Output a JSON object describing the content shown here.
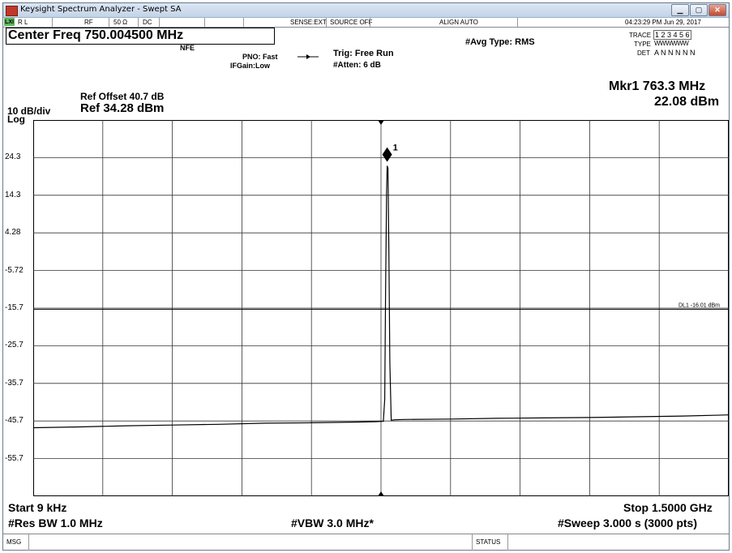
{
  "window": {
    "title": "Keysight Spectrum Analyzer - Swept SA",
    "minimize": "▁",
    "maximize": "▢",
    "close": "✕"
  },
  "status_bar": {
    "lxi": "LXI",
    "rl": "R L",
    "rf": "RF",
    "impedance": "50 Ω",
    "coupling": "DC",
    "sense": "SENSE:EXT",
    "source": "SOURCE OFF",
    "align": "ALIGN AUTO",
    "datetime": "04:23:29 PM Jun 29, 2017"
  },
  "header": {
    "center_freq": "Center Freq 750.004500 MHz",
    "nfe": "NFE",
    "pno": "PNO: Fast",
    "ifgain": "IFGain:Low",
    "trig": "Trig: Free Run",
    "atten": "#Atten: 6 dB",
    "avg_type": "#Avg Type: RMS",
    "trace_label": "TRACE",
    "trace_values": "1 2 3 4 5 6",
    "type_label": "TYPE",
    "type_values": "WWWWWW",
    "det_label": "DET",
    "det_values": "A N N N N N"
  },
  "reference": {
    "ref_offset": "Ref Offset 40.7 dB",
    "ref_level": "Ref 34.28 dBm",
    "scale": "10 dB/div",
    "scale_type": "Log"
  },
  "marker": {
    "label": "Mkr1 763.3 MHz",
    "value": "22.08 dBm",
    "number": "1",
    "freq_mhz": 763.3,
    "level_dbm": 22.08
  },
  "display_line": {
    "label": "DL1 -16.01 dBm",
    "level_dbm": -16.01
  },
  "chart_data": {
    "type": "line",
    "y_ticks": [
      "24.3",
      "14.3",
      "4.28",
      "-5.72",
      "-15.7",
      "-25.7",
      "-35.7",
      "-45.7",
      "-55.7"
    ],
    "ylim": [
      -65.72,
      34.28
    ],
    "xlim_ghz": [
      9e-06,
      1.5
    ],
    "grid": true,
    "series": [
      {
        "x_ghz": [
          9e-06,
          0.1,
          0.2,
          0.3,
          0.4,
          0.5,
          0.6,
          0.7,
          0.74,
          0.755,
          0.758,
          0.76,
          0.762,
          0.7633,
          0.765,
          0.767,
          0.769,
          0.772,
          0.78,
          0.8,
          0.9,
          1.0,
          1.1,
          1.2,
          1.3,
          1.4,
          1.5
        ],
        "y_dbm": [
          -47.5,
          -47.3,
          -47.0,
          -46.8,
          -46.6,
          -46.3,
          -46.2,
          -46.0,
          -45.9,
          -45.8,
          -40.0,
          -10.0,
          15.0,
          22.08,
          21.5,
          0.0,
          -30.0,
          -45.5,
          -45.4,
          -45.3,
          -45.2,
          -45.0,
          -44.9,
          -44.8,
          -44.6,
          -44.4,
          -44.1
        ]
      }
    ]
  },
  "footer": {
    "start": "Start 9 kHz",
    "stop": "Stop 1.5000 GHz",
    "res_bw": "#Res BW 1.0 MHz",
    "vbw": "#VBW 3.0 MHz*",
    "sweep": "#Sweep  3.000 s (3000 pts)"
  },
  "message_bar": {
    "msg": "MSG",
    "status": "STATUS"
  }
}
